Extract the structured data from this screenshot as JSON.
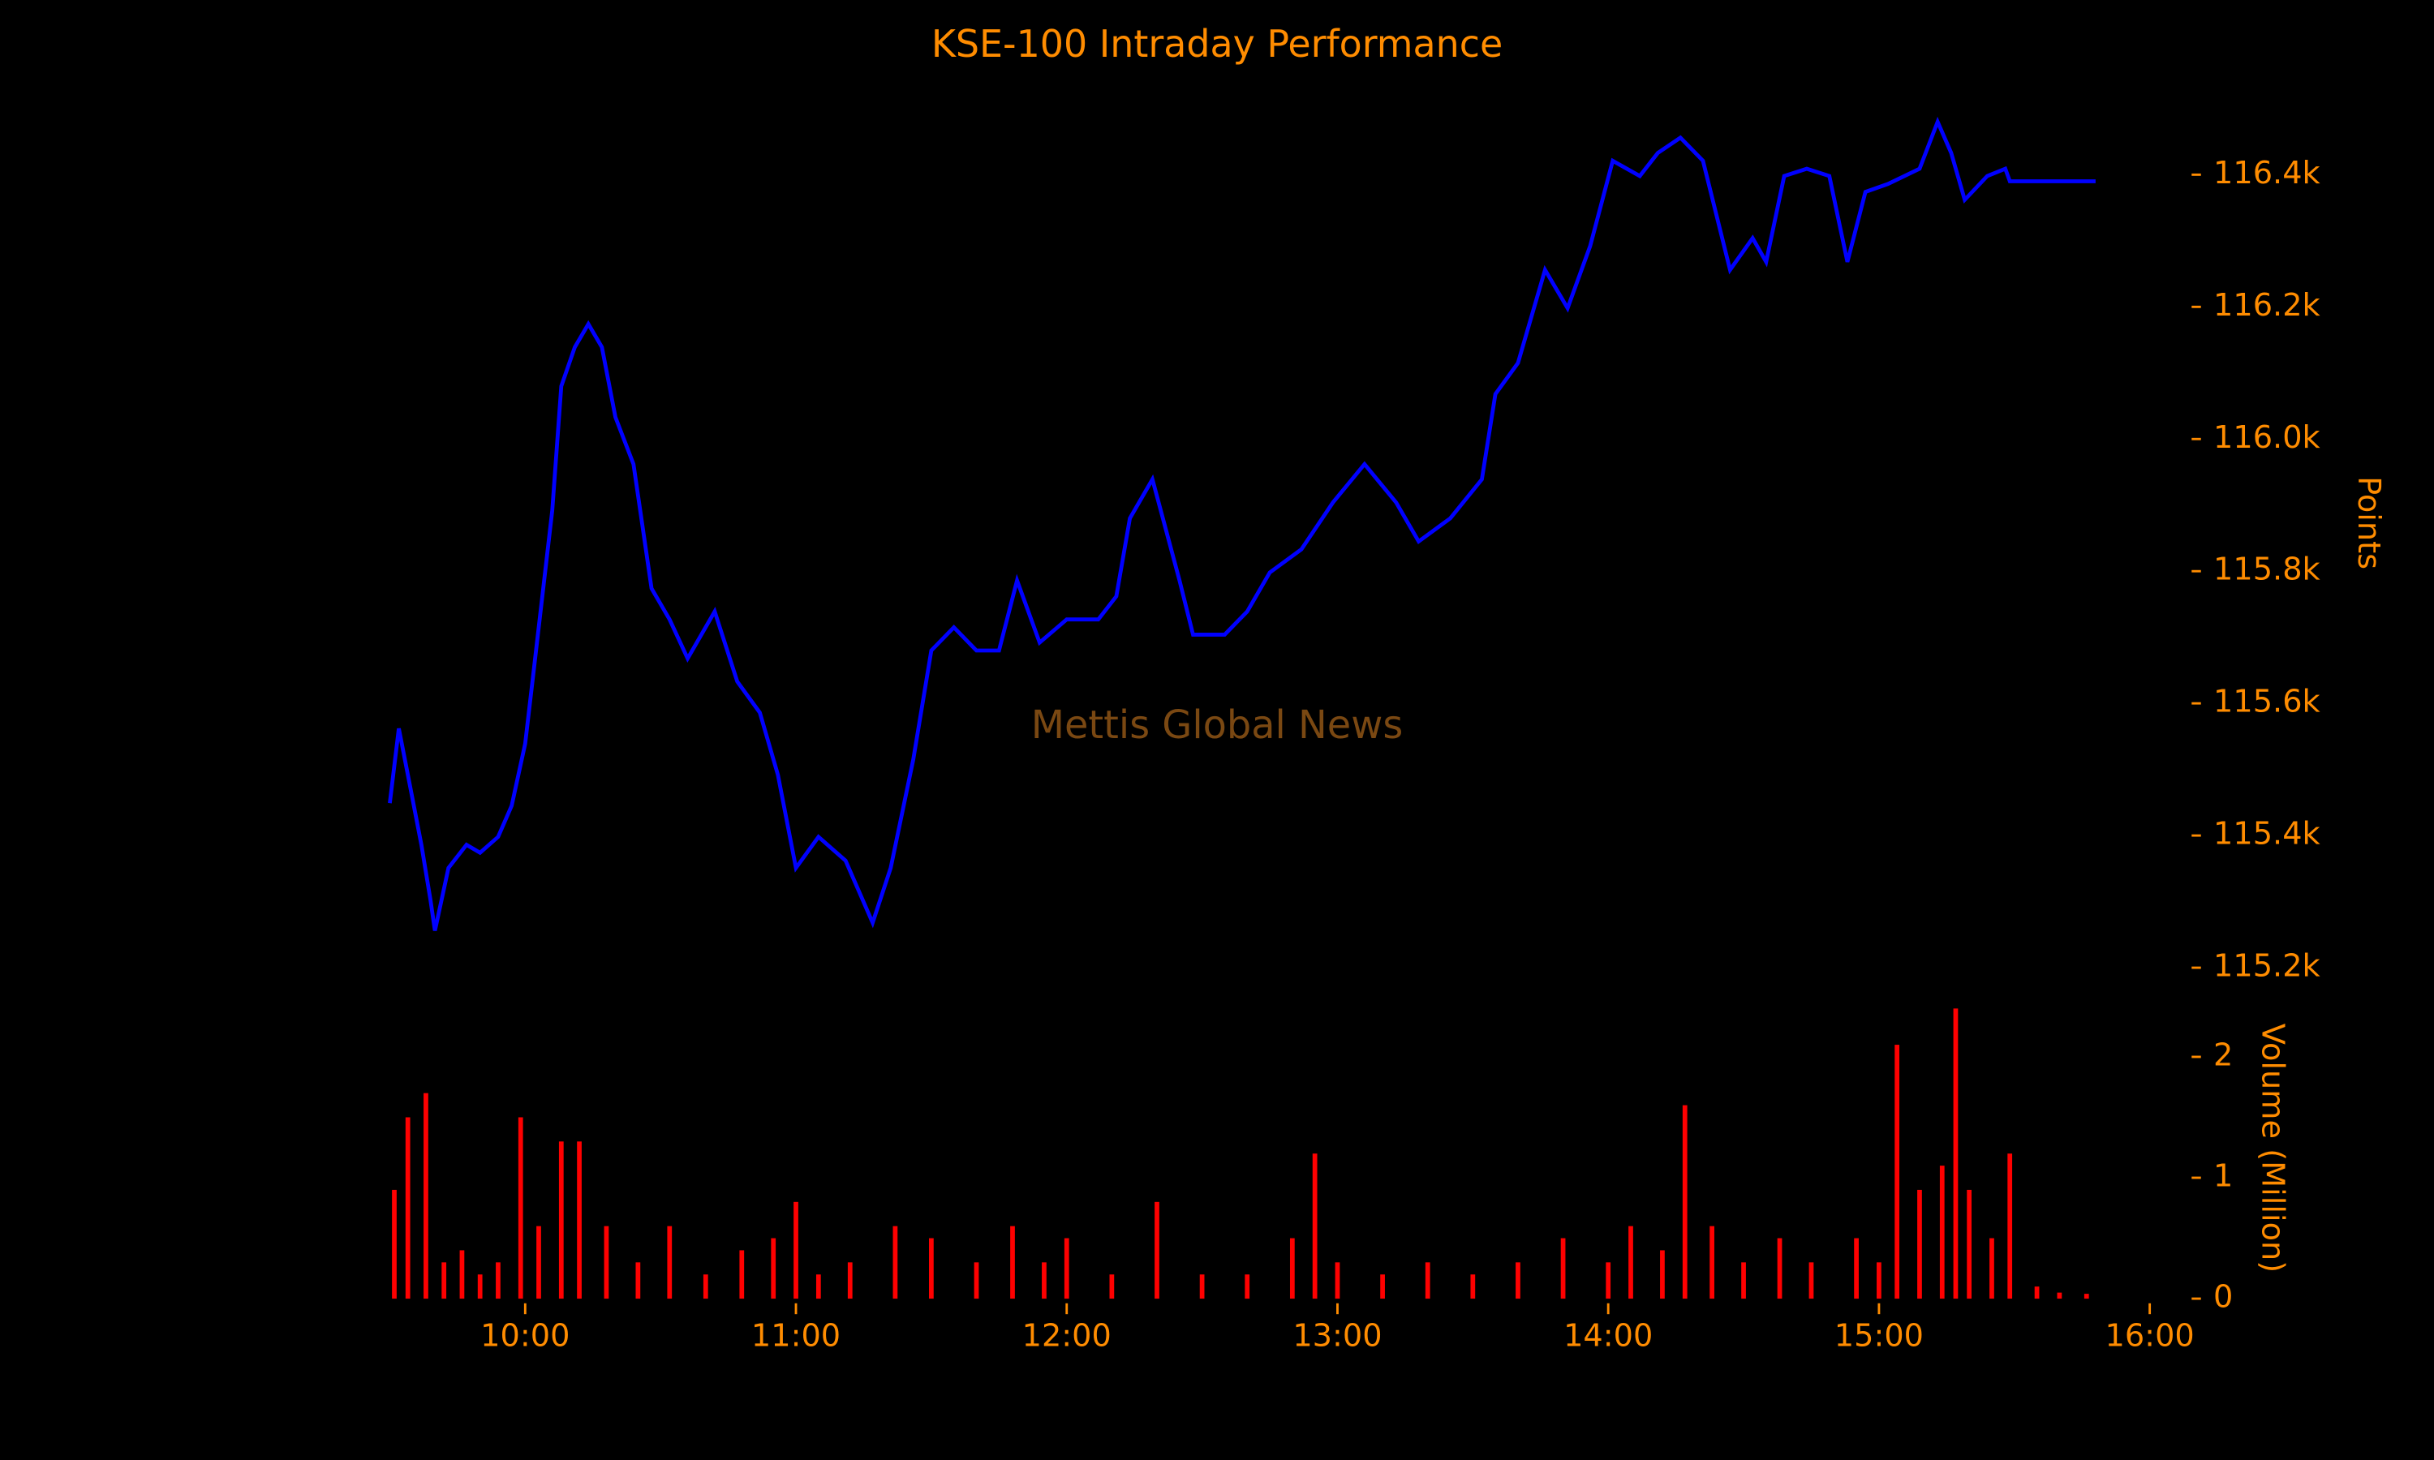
{
  "chart_data": [
    {
      "type": "line",
      "title": "KSE-100 Intraday Performance",
      "annotation": "Mettis Global News",
      "ylabel": "Points",
      "color": "#0000ff",
      "x": [
        "09:30",
        "09:32",
        "09:34",
        "09:37",
        "09:39",
        "09:40",
        "09:43",
        "09:47",
        "09:50",
        "09:54",
        "09:57",
        "10:00",
        "10:02",
        "10:06",
        "10:08",
        "10:11",
        "10:14",
        "10:17",
        "10:20",
        "10:24",
        "10:28",
        "10:32",
        "10:36",
        "10:42",
        "10:47",
        "10:52",
        "10:56",
        "11:00",
        "11:05",
        "11:11",
        "11:17",
        "11:21",
        "11:26",
        "11:30",
        "11:35",
        "11:40",
        "11:45",
        "11:49",
        "11:54",
        "12:00",
        "12:07",
        "12:11",
        "12:14",
        "12:19",
        "12:25",
        "12:28",
        "12:35",
        "12:40",
        "12:45",
        "12:52",
        "12:59",
        "13:06",
        "13:13",
        "13:18",
        "13:25",
        "13:32",
        "13:35",
        "13:40",
        "13:46",
        "13:51",
        "13:56",
        "14:01",
        "14:07",
        "14:11",
        "14:16",
        "14:21",
        "14:27",
        "14:32",
        "14:35",
        "14:39",
        "14:44",
        "14:49",
        "14:53",
        "14:57",
        "15:02",
        "15:09",
        "15:13",
        "15:16",
        "15:19",
        "15:24",
        "15:28",
        "15:29",
        "15:48"
      ],
      "values": [
        115449,
        115562,
        115492,
        115386,
        115303,
        115256,
        115351,
        115386,
        115374,
        115398,
        115445,
        115539,
        115656,
        115892,
        116080,
        116139,
        116174,
        116139,
        116033,
        115962,
        115774,
        115727,
        115668,
        115739,
        115633,
        115586,
        115492,
        115351,
        115398,
        115362,
        115268,
        115351,
        115515,
        115680,
        115715,
        115680,
        115680,
        115786,
        115692,
        115727,
        115727,
        115762,
        115880,
        115939,
        115786,
        115704,
        115704,
        115739,
        115798,
        115833,
        115904,
        115962,
        115904,
        115845,
        115880,
        115939,
        116068,
        116115,
        116256,
        116198,
        116292,
        116421,
        116398,
        116433,
        116456,
        116421,
        116256,
        116304,
        116268,
        116398,
        116409,
        116398,
        116268,
        116374,
        116386,
        116409,
        116480,
        116433,
        116362,
        116398,
        116409,
        116390,
        116390
      ],
      "xlim": [
        "09:30",
        "16:00"
      ],
      "ylim": [
        115150,
        116500
      ],
      "yticks": [
        {
          "value": 115200,
          "label": "115.2k"
        },
        {
          "value": 115400,
          "label": "115.4k"
        },
        {
          "value": 115600,
          "label": "115.6k"
        },
        {
          "value": 115800,
          "label": "115.8k"
        },
        {
          "value": 116000,
          "label": "116.0k"
        },
        {
          "value": 116200,
          "label": "116.2k"
        },
        {
          "value": 116400,
          "label": "116.4k"
        }
      ]
    },
    {
      "type": "bar",
      "ylabel": "Volume (Million)",
      "color": "#ff0000",
      "x": [
        "09:31",
        "09:34",
        "09:38",
        "09:42",
        "09:46",
        "09:50",
        "09:54",
        "09:59",
        "10:03",
        "10:08",
        "10:12",
        "10:18",
        "10:25",
        "10:32",
        "10:40",
        "10:48",
        "10:55",
        "11:00",
        "11:05",
        "11:12",
        "11:22",
        "11:30",
        "11:40",
        "11:48",
        "11:55",
        "12:00",
        "12:10",
        "12:20",
        "12:30",
        "12:40",
        "12:50",
        "12:55",
        "13:00",
        "13:10",
        "13:20",
        "13:30",
        "13:40",
        "13:50",
        "14:00",
        "14:05",
        "14:12",
        "14:17",
        "14:23",
        "14:30",
        "14:38",
        "14:45",
        "14:55",
        "15:00",
        "15:04",
        "15:09",
        "15:14",
        "15:17",
        "15:20",
        "15:25",
        "15:29",
        "15:35",
        "15:40",
        "15:46"
      ],
      "values": [
        0.9,
        1.5,
        1.7,
        0.3,
        0.4,
        0.2,
        0.3,
        1.5,
        0.6,
        1.3,
        1.3,
        0.6,
        0.3,
        0.6,
        0.2,
        0.4,
        0.5,
        0.8,
        0.2,
        0.3,
        0.6,
        0.5,
        0.3,
        0.6,
        0.3,
        0.5,
        0.2,
        0.8,
        0.2,
        0.2,
        0.5,
        1.2,
        0.3,
        0.2,
        0.3,
        0.2,
        0.3,
        0.5,
        0.3,
        0.6,
        0.4,
        1.6,
        0.6,
        0.3,
        0.5,
        0.3,
        0.5,
        0.3,
        2.1,
        0.9,
        1.1,
        2.4,
        0.9,
        0.5,
        1.2,
        0.1,
        0.05,
        0.04
      ],
      "xlim": [
        "09:30",
        "16:00"
      ],
      "ylim": [
        0,
        2.4
      ],
      "yticks": [
        0,
        1,
        2
      ],
      "xticks": [
        "10:00",
        "11:00",
        "12:00",
        "13:00",
        "14:00",
        "15:00",
        "16:00"
      ]
    }
  ]
}
